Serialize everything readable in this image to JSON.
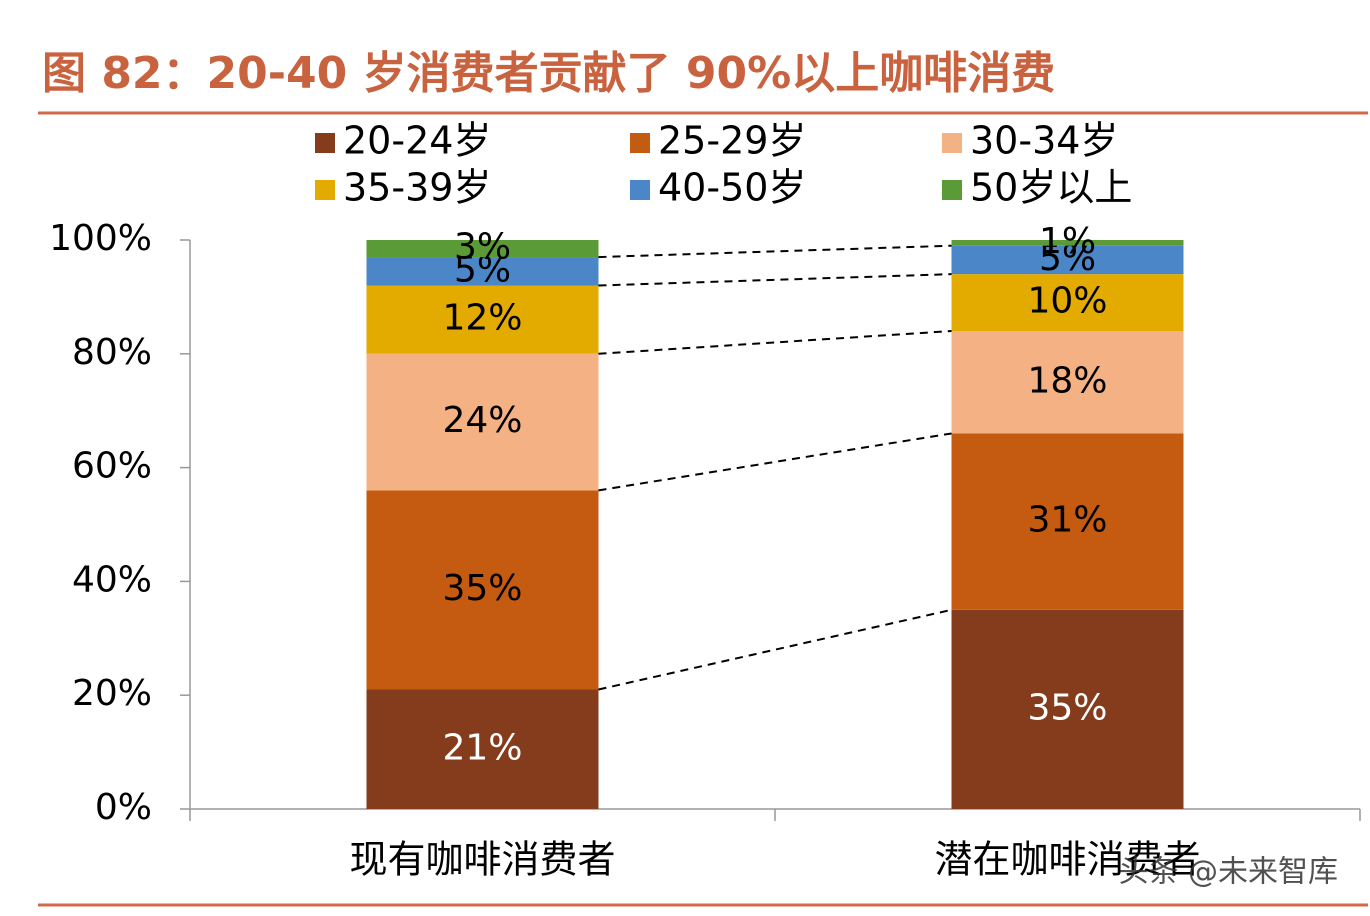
{
  "chart_data": {
    "type": "stacked_bar",
    "title": "图 82：20-40 岁消费者贡献了 90%以上咖啡消费",
    "categories": [
      "现有咖啡消费者",
      "潜在咖啡消费者"
    ],
    "series": [
      {
        "name": "20-24岁",
        "color": "#843C1C",
        "label_color": "#ffffff",
        "values": [
          21,
          35
        ],
        "value_labels": [
          "21%",
          "35%"
        ]
      },
      {
        "name": "25-29岁",
        "color": "#C55A11",
        "label_color": "#000000",
        "values": [
          35,
          31
        ],
        "value_labels": [
          "35%",
          "31%"
        ]
      },
      {
        "name": "30-34岁",
        "color": "#F4B183",
        "label_color": "#000000",
        "values": [
          24,
          18
        ],
        "value_labels": [
          "24%",
          "18%"
        ]
      },
      {
        "name": "35-39岁",
        "color": "#E3AA00",
        "label_color": "#000000",
        "values": [
          12,
          10
        ],
        "value_labels": [
          "12%",
          "10%"
        ]
      },
      {
        "name": "40-50岁",
        "color": "#4A86C8",
        "label_color": "#000000",
        "values": [
          5,
          5
        ],
        "value_labels": [
          "5%",
          "5%"
        ]
      },
      {
        "name": "50岁以上",
        "color": "#5B9B37",
        "label_color": "#000000",
        "values": [
          3,
          1
        ],
        "value_labels": [
          "3%",
          "1%"
        ]
      }
    ],
    "ylim": [
      0,
      100
    ],
    "yticks": [
      {
        "value": 0,
        "label": "0%"
      },
      {
        "value": 20,
        "label": "20%"
      },
      {
        "value": 40,
        "label": "40%"
      },
      {
        "value": 60,
        "label": "60%"
      },
      {
        "value": 80,
        "label": "80%"
      },
      {
        "value": 100,
        "label": "100%"
      }
    ],
    "connectors": true,
    "watermark": "头条 @未来智库"
  }
}
